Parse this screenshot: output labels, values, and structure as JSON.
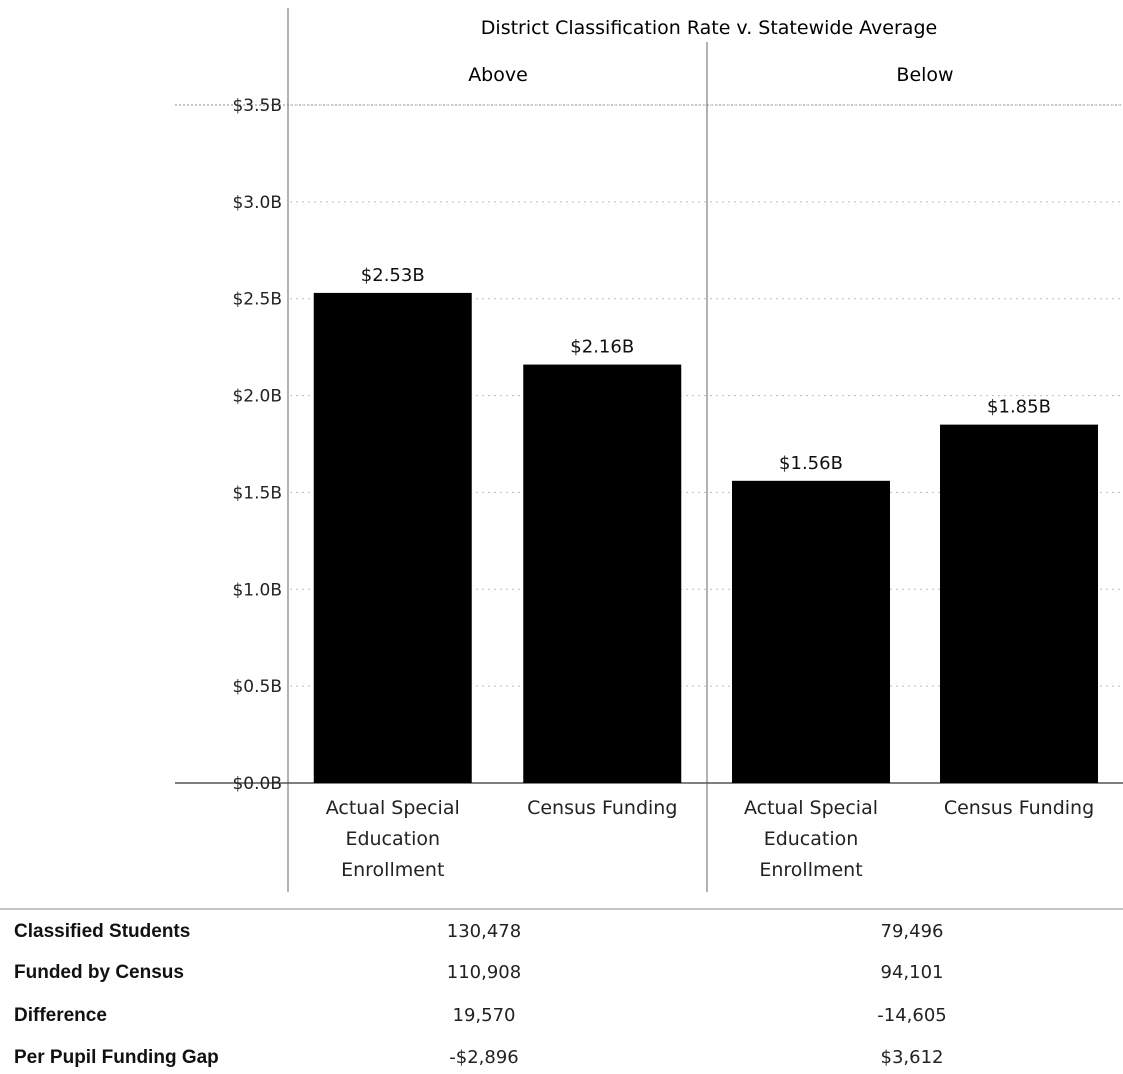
{
  "chart_data": {
    "type": "bar",
    "title": "District Classification Rate v. Statewide Average",
    "groups": [
      "Above",
      "Below"
    ],
    "categories": [
      "Actual Special Education Enrollment",
      "Census Funding"
    ],
    "category_lines": [
      [
        "Actual Special",
        "Education",
        "Enrollment"
      ],
      [
        "Census Funding"
      ]
    ],
    "series": [
      {
        "group": "Above",
        "values": [
          2.53,
          2.16
        ],
        "labels": [
          "$2.53B",
          "$2.16B"
        ]
      },
      {
        "group": "Below",
        "values": [
          1.56,
          1.85
        ],
        "labels": [
          "$1.56B",
          "$1.85B"
        ]
      }
    ],
    "ylim": [
      0,
      3.5
    ],
    "yticks": [
      0,
      0.5,
      1.0,
      1.5,
      2.0,
      2.5,
      3.0,
      3.5
    ],
    "ytick_labels": [
      "$0.0B",
      "$0.5B",
      "$1.0B",
      "$1.5B",
      "$2.0B",
      "$2.5B",
      "$3.0B",
      "$3.5B"
    ],
    "bar_color": "#000000",
    "grid": "horizontal dotted"
  },
  "table": {
    "rows": [
      {
        "label": "Classified Students",
        "above": "130,478",
        "below": "79,496"
      },
      {
        "label": "Funded by Census",
        "above": "110,908",
        "below": "94,101"
      },
      {
        "label": "Difference",
        "above": "19,570",
        "below": "-14,605"
      },
      {
        "label": "Per Pupil Funding Gap",
        "above": "-$2,896",
        "below": "$3,612"
      }
    ]
  }
}
